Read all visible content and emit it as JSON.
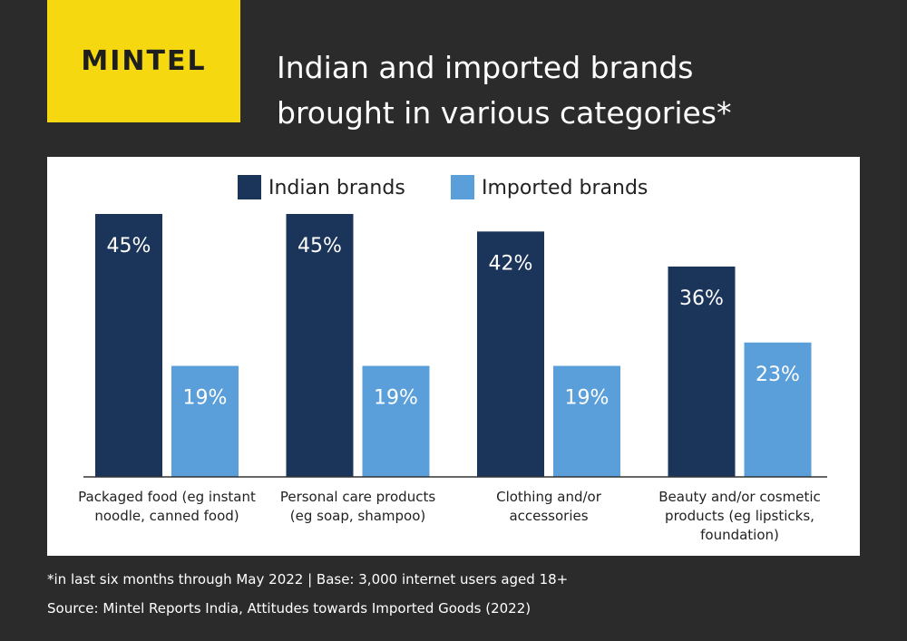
{
  "chart_data": {
    "type": "bar",
    "brand": "MINTEL",
    "title": "Indian and imported brands brought in various categories*",
    "categories": [
      "Packaged food (eg instant noodle, canned food)",
      "Personal care products (eg soap, shampoo)",
      "Clothing and/or accessories",
      "Beauty and/or cosmetic products (eg lipsticks, foundation)"
    ],
    "series": [
      {
        "name": "Indian brands",
        "color": "#1b3459",
        "values": [
          45,
          45,
          42,
          36
        ],
        "value_labels": [
          "45%",
          "45%",
          "42%",
          "36%"
        ]
      },
      {
        "name": "Imported brands",
        "color": "#5a9fd9",
        "values": [
          19,
          19,
          19,
          23
        ],
        "value_labels": [
          "19%",
          "19%",
          "19%",
          "23%"
        ]
      }
    ],
    "footnote": "*in last six months through May 2022 | Base: 3,000 internet users aged 18+",
    "source": "Source: Mintel Reports India, Attitudes towards Imported Goods (2022)"
  }
}
